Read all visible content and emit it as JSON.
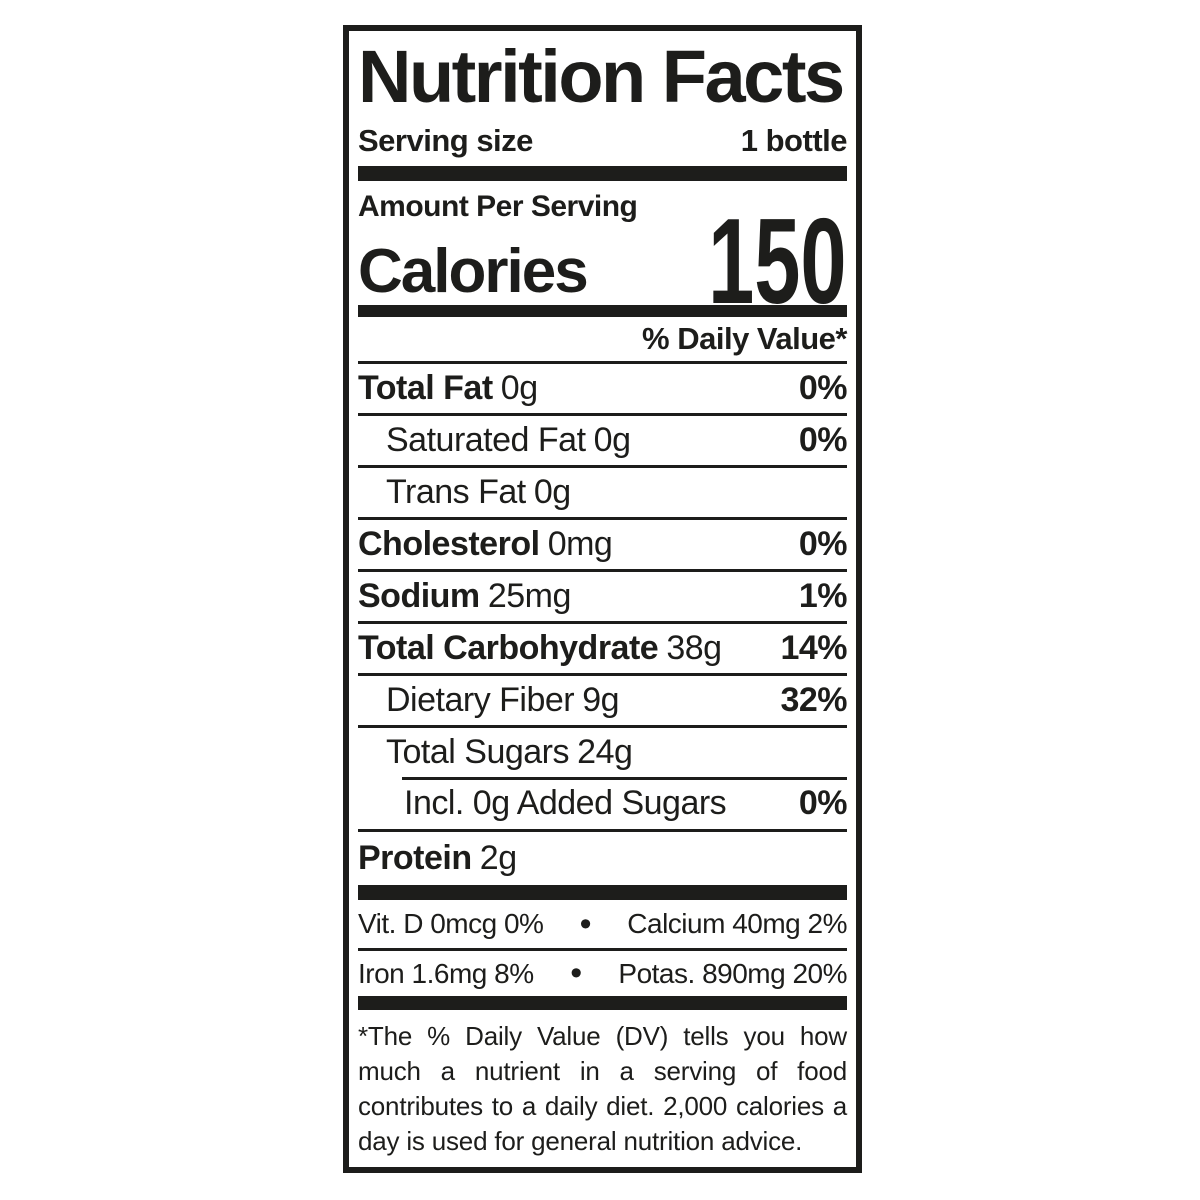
{
  "page": {
    "background": "#ffffff"
  },
  "label": {
    "ink_color": "#1d1d1b",
    "title": "Nutrition Facts",
    "serving": {
      "label": "Serving size",
      "value": "1 bottle"
    },
    "amount_per_serving": "Amount Per Serving",
    "calories": {
      "label": "Calories",
      "value": "150"
    },
    "daily_value_header": "% Daily Value*",
    "nutrients": [
      {
        "name": "Total Fat",
        "amount": "0g",
        "dv": "0%"
      },
      {
        "name": "Saturated Fat",
        "amount": "0g",
        "dv": "0%"
      },
      {
        "name": "Trans Fat",
        "amount": "0g",
        "dv": ""
      },
      {
        "name": "Cholesterol",
        "amount": "0mg",
        "dv": "0%"
      },
      {
        "name": "Sodium",
        "amount": "25mg",
        "dv": "1%"
      },
      {
        "name": "Total Carbohydrate",
        "amount": "38g",
        "dv": "14%"
      },
      {
        "name": "Dietary Fiber",
        "amount": "9g",
        "dv": "32%"
      },
      {
        "name": "Total Sugars",
        "amount": "24g",
        "dv": ""
      },
      {
        "name": "Incl. 0g Added Sugars",
        "amount": "",
        "dv": "0%"
      },
      {
        "name": "Protein",
        "amount": "2g",
        "dv": ""
      }
    ],
    "micronutrients": {
      "bullet": "•",
      "rows": [
        {
          "left": "Vit. D 0mcg 0%",
          "right": "Calcium 40mg 2%"
        },
        {
          "left": "Iron 1.6mg 8%",
          "right": "Potas. 890mg 20%"
        }
      ]
    },
    "footnote": "*The % Daily Value (DV) tells you how much a nutrient in a serving of food contributes to a daily diet. 2,000 calories a day is used for general nutrition advice."
  }
}
